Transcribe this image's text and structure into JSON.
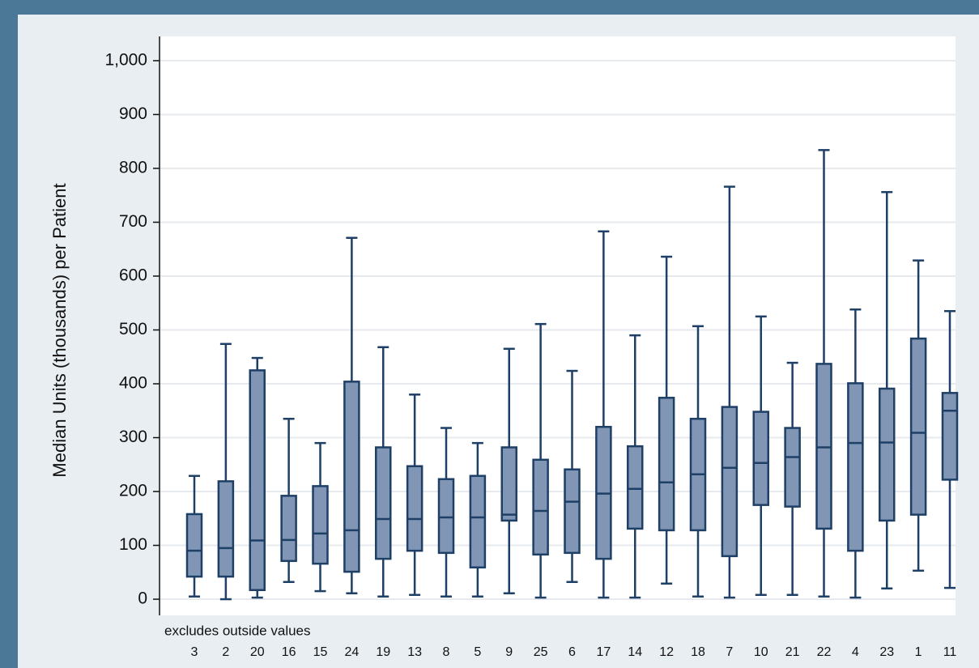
{
  "chart_data": {
    "type": "box",
    "y_label": "Median Units (thousands) per Patient",
    "note": "excludes outside values",
    "categories": [
      "3",
      "2",
      "20",
      "16",
      "15",
      "24",
      "19",
      "13",
      "8",
      "5",
      "9",
      "25",
      "6",
      "17",
      "14",
      "12",
      "18",
      "7",
      "10",
      "21",
      "22",
      "4",
      "23",
      "1",
      "11"
    ],
    "whisker_low": [
      5,
      0,
      3,
      32,
      15,
      11,
      5,
      8,
      5,
      5,
      11,
      3,
      32,
      3,
      3,
      29,
      5,
      3,
      8,
      8,
      5,
      3,
      20,
      53,
      21
    ],
    "q1": [
      42,
      42,
      17,
      71,
      66,
      51,
      75,
      90,
      86,
      59,
      146,
      83,
      86,
      75,
      131,
      128,
      128,
      80,
      175,
      172,
      131,
      90,
      146,
      157,
      222
    ],
    "median": [
      90,
      95,
      109,
      110,
      122,
      128,
      149,
      149,
      152,
      152,
      157,
      164,
      181,
      196,
      205,
      217,
      232,
      244,
      253,
      264,
      282,
      290,
      291,
      309,
      350
    ],
    "q3": [
      158,
      219,
      425,
      192,
      210,
      404,
      282,
      247,
      223,
      229,
      282,
      259,
      241,
      320,
      284,
      374,
      335,
      357,
      348,
      318,
      437,
      401,
      391,
      484,
      383
    ],
    "whisker_high": [
      229,
      474,
      448,
      335,
      290,
      671,
      468,
      380,
      318,
      290,
      465,
      511,
      424,
      683,
      490,
      636,
      507,
      766,
      525,
      439,
      834,
      538,
      756,
      629,
      535
    ],
    "fill": "#8096b4",
    "stroke": "#1e3f66",
    "ylim": [
      -30,
      1045
    ],
    "yticks": [
      0,
      100,
      200,
      300,
      400,
      500,
      600,
      700,
      800,
      900,
      {
        "value": 1000,
        "label": "1,000"
      }
    ],
    "grid": true
  }
}
